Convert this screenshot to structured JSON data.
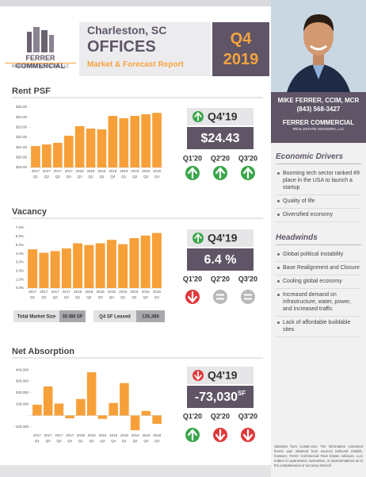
{
  "header": {
    "logo_name": "FERRER COMMERCIAL",
    "logo_sub": "REAL ESTATE ADVISORS, LLC",
    "city": "Charleston, SC",
    "title": "OFFICES",
    "subtitle": "Market & Forecast Report",
    "quarter": "Q4",
    "year": "2019"
  },
  "agent": {
    "name": "MIKE FERRER, CCIM, MCR",
    "phone": "(843) 568-3427",
    "logo_name": "FERRER COMMERCIAL",
    "logo_sub": "REAL ESTATE ADVISORS, LLC"
  },
  "economic_drivers": {
    "title": "Economic Drivers",
    "items": [
      "Booming tech sector ranked #9 place in the USA to launch a startup",
      "Quality of life",
      "Diversified economy"
    ]
  },
  "headwinds": {
    "title": "Headwinds",
    "items": [
      "Global political instability",
      "Base Realignment and Closure",
      "Cooling global economy",
      "Increased demand on infrastructure, water, power, and increased traffic",
      "Lack of affordable buildable sites"
    ]
  },
  "disclaimer": "Statistics from Costar.com. The information contained herein was obtained from sources believed reliable, however, Ferrer Commercial Real Estate Advisors, LLC makes no guarantees, warranties, or representations as to the completeness or accuracy thereof.",
  "chart_data": [
    {
      "type": "bar",
      "title": "Rent PSF",
      "color": "#f7a03a",
      "categories": [
        "Q1",
        "Q2",
        "Q3",
        "Q4",
        "Q1",
        "Q2",
        "Q3",
        "Q4",
        "Q1",
        "Q2",
        "Q3",
        "Q4"
      ],
      "category_years": [
        "2017",
        "2017",
        "2017",
        "2017",
        "2018",
        "2018",
        "2018",
        "2018",
        "2019",
        "2019",
        "2019",
        "2019"
      ],
      "values": [
        21.13,
        21.29,
        21.45,
        22.16,
        23.11,
        22.87,
        22.79,
        24.13,
        23.9,
        24.13,
        24.29,
        24.43
      ],
      "ylim": [
        19,
        25
      ],
      "yticks": [
        {
          "value": 19,
          "label": "$19.00"
        },
        {
          "value": 20,
          "label": "$20.00"
        },
        {
          "value": 21,
          "label": "$21.00"
        },
        {
          "value": 22,
          "label": "$22.00"
        },
        {
          "value": 23,
          "label": "$23.00"
        },
        {
          "value": 24,
          "label": "$24.00"
        },
        {
          "value": 25,
          "label": "$25.00"
        }
      ]
    },
    {
      "type": "bar",
      "title": "Vacancy",
      "color": "#f7a03a",
      "categories": [
        "Q1",
        "Q2",
        "Q3",
        "Q4",
        "Q1",
        "Q2",
        "Q3",
        "Q4",
        "Q1",
        "Q2",
        "Q3",
        "Q4"
      ],
      "category_years": [
        "2017",
        "2017",
        "2017",
        "2017",
        "2018",
        "2018",
        "2018",
        "2018",
        "2019",
        "2019",
        "2019",
        "2019"
      ],
      "values": [
        4.5,
        4.1,
        4.3,
        4.6,
        5.2,
        5.0,
        5.2,
        5.6,
        5.1,
        5.8,
        6.1,
        6.4
      ],
      "ylim": [
        0,
        7
      ],
      "yticks": [
        {
          "value": 0,
          "label": "0.0%"
        },
        {
          "value": 1,
          "label": "1.0%"
        },
        {
          "value": 2,
          "label": "2.0%"
        },
        {
          "value": 3,
          "label": "3.0%"
        },
        {
          "value": 4,
          "label": "4.0%"
        },
        {
          "value": 5,
          "label": "5.0%"
        },
        {
          "value": 6,
          "label": "6.0%"
        },
        {
          "value": 7,
          "label": "7.0%"
        }
      ]
    },
    {
      "type": "bar",
      "title": "Net Absorption",
      "color": "#f7a03a",
      "categories": [
        "Q1",
        "Q2",
        "Q3",
        "Q4",
        "Q1",
        "Q2",
        "Q3",
        "Q4",
        "Q1",
        "Q2",
        "Q3",
        "Q4"
      ],
      "category_years": [
        "2017",
        "2017",
        "2017",
        "2017",
        "2018",
        "2018",
        "2018",
        "2018",
        "2019",
        "2019",
        "2019",
        "2019"
      ],
      "values": [
        95000,
        255000,
        105000,
        -25000,
        145000,
        380000,
        -30000,
        110000,
        285000,
        -130000,
        40000,
        -73030
      ],
      "ylim": [
        -150000,
        450000
      ],
      "yticks": [
        {
          "value": -100000,
          "label": "-100,000"
        },
        {
          "value": 0,
          "label": "-"
        },
        {
          "value": 100000,
          "label": "100,000"
        },
        {
          "value": 200000,
          "label": "200,000"
        },
        {
          "value": 300000,
          "label": "300,000"
        },
        {
          "value": 400000,
          "label": "400,000"
        }
      ]
    }
  ],
  "panels": [
    {
      "period": "Q4'19",
      "trend": "up",
      "value": "$24.43",
      "forecasts": [
        {
          "label": "Q1'20",
          "trend": "up"
        },
        {
          "label": "Q2'20",
          "trend": "up"
        },
        {
          "label": "Q3'20",
          "trend": "up"
        }
      ]
    },
    {
      "period": "Q4'19",
      "trend": "up",
      "value": "6.4 %",
      "forecasts": [
        {
          "label": "Q1'20",
          "trend": "down"
        },
        {
          "label": "Q2'20",
          "trend": "equal"
        },
        {
          "label": "Q3'20",
          "trend": "equal"
        }
      ]
    },
    {
      "period": "Q4'19",
      "trend": "down",
      "value": "-73,030",
      "unit": "SF",
      "forecasts": [
        {
          "label": "Q1'20",
          "trend": "up"
        },
        {
          "label": "Q2'20",
          "trend": "down"
        },
        {
          "label": "Q3'20",
          "trend": "down"
        }
      ]
    }
  ],
  "market_table": {
    "rows": [
      [
        "Total Market Size",
        "30.8M SF",
        "Q4 SF Leased",
        "135,380"
      ]
    ]
  }
}
